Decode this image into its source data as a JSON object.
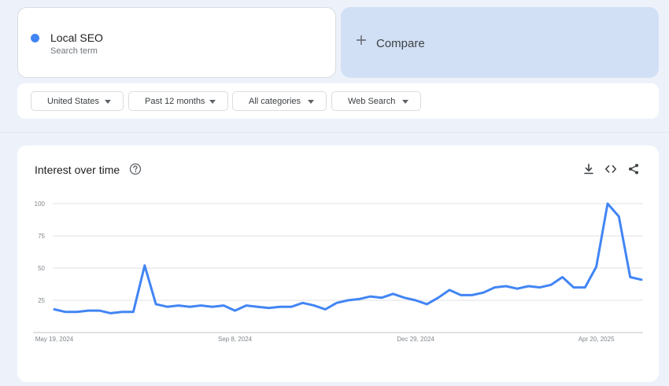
{
  "search_term": {
    "name": "Local SEO",
    "type_label": "Search term",
    "color": "#4285f4"
  },
  "compare": {
    "label": "Compare",
    "icon": "plus-icon"
  },
  "filters": [
    {
      "label": "United States"
    },
    {
      "label": "Past 12 months"
    },
    {
      "label": "All categories"
    },
    {
      "label": "Web Search"
    }
  ],
  "chart_card": {
    "title": "Interest over time",
    "help_icon": "help-circle-icon",
    "actions": [
      "download-icon",
      "embed-code-icon",
      "share-icon"
    ]
  },
  "chart_data": {
    "type": "line",
    "title": "Interest over time",
    "xlabel": "",
    "ylabel": "",
    "ylim": [
      0,
      100
    ],
    "y_ticks": [
      25,
      50,
      75,
      100
    ],
    "x_tick_labels": [
      {
        "label": "May 19, 2024",
        "index": 0
      },
      {
        "label": "Sep 8, 2024",
        "index": 16
      },
      {
        "label": "Dec 29, 2024",
        "index": 32
      },
      {
        "label": "Apr 20, 2025",
        "index": 48
      }
    ],
    "grid": true,
    "legend": "none",
    "series": [
      {
        "color": "#4285f4",
        "values": [
          18,
          16,
          16,
          17,
          17,
          15,
          16,
          16,
          52,
          22,
          20,
          21,
          20,
          21,
          20,
          21,
          17,
          21,
          20,
          19,
          20,
          20,
          23,
          21,
          18,
          23,
          25,
          26,
          28,
          27,
          30,
          27,
          25,
          22,
          27,
          33,
          29,
          29,
          31,
          35,
          36,
          34,
          36,
          35,
          37,
          43,
          35,
          35,
          51,
          100,
          90,
          43,
          41
        ]
      }
    ]
  }
}
